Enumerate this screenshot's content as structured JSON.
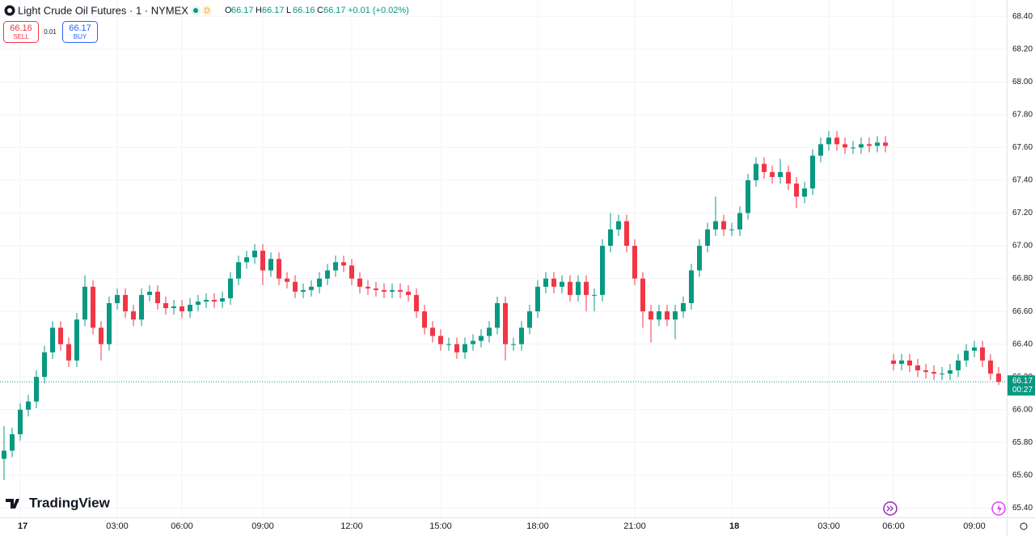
{
  "header": {
    "title": "Light Crude Oil Futures · 1 · NYMEX",
    "badge": "D",
    "ohlc": [
      {
        "key": "O",
        "value": "66.17"
      },
      {
        "key": "H",
        "value": "66.17"
      },
      {
        "key": "L",
        "value": "66.16"
      },
      {
        "key": "C",
        "value": "66.17"
      }
    ],
    "change": "+0.01 (+0.02%)",
    "sell": {
      "price": "66.16",
      "label": "SELL"
    },
    "spread": "0.01",
    "buy": {
      "price": "66.17",
      "label": "BUY"
    },
    "logo": "TradingView"
  },
  "chart_data": {
    "type": "candlestick",
    "up_color": "#089981",
    "down_color": "#f23645",
    "grid": true,
    "ylim": [
      65.35,
      68.5
    ],
    "yticks": [
      {
        "value": 65.4,
        "label": "65.40"
      },
      {
        "value": 65.6,
        "label": "65.60"
      },
      {
        "value": 65.8,
        "label": "65.80"
      },
      {
        "value": 66,
        "label": "66.00"
      },
      {
        "value": 66.2,
        "label": "66.20"
      },
      {
        "value": 66.4,
        "label": "66.40"
      },
      {
        "value": 66.6,
        "label": "66.60"
      },
      {
        "value": 66.8,
        "label": "66.80"
      },
      {
        "value": 67,
        "label": "67.00"
      },
      {
        "value": 67.2,
        "label": "67.20"
      },
      {
        "value": 67.4,
        "label": "67.40"
      },
      {
        "value": 67.6,
        "label": "67.60"
      },
      {
        "value": 67.8,
        "label": "67.80"
      },
      {
        "value": 68,
        "label": "68.00"
      },
      {
        "value": 68.2,
        "label": "68.20"
      },
      {
        "value": 68.4,
        "label": "68.40"
      }
    ],
    "last_price": 66.17,
    "countdown": "00:27",
    "categories": [
      null,
      null,
      "17",
      null,
      null,
      null,
      null,
      null,
      null,
      null,
      null,
      null,
      null,
      null,
      "03:00",
      null,
      null,
      null,
      null,
      null,
      null,
      null,
      "06:00",
      null,
      null,
      null,
      null,
      null,
      null,
      null,
      null,
      null,
      "09:00",
      null,
      null,
      null,
      null,
      null,
      null,
      null,
      null,
      null,
      null,
      "12:00",
      null,
      null,
      null,
      null,
      null,
      null,
      null,
      null,
      null,
      null,
      "15:00",
      null,
      null,
      null,
      null,
      null,
      null,
      null,
      null,
      null,
      null,
      null,
      "18:00",
      null,
      null,
      null,
      null,
      null,
      null,
      null,
      null,
      null,
      null,
      null,
      "21:00",
      null,
      null,
      null,
      null,
      null,
      null,
      null,
      null,
      null,
      null,
      null,
      "18",
      null,
      null,
      null,
      null,
      null,
      null,
      null,
      null,
      null,
      null,
      null,
      "03:00",
      null,
      null,
      null,
      null,
      null,
      null,
      null,
      "06:00",
      null,
      null,
      null,
      null,
      null,
      null,
      null,
      null,
      null,
      "09:00",
      null,
      null,
      null
    ],
    "open": [
      65.7,
      65.75,
      65.85,
      66.0,
      66.05,
      66.2,
      66.35,
      66.5,
      66.4,
      66.3,
      66.55,
      66.75,
      66.5,
      66.4,
      66.65,
      66.7,
      66.6,
      66.55,
      66.7,
      66.72,
      66.65,
      66.62,
      66.63,
      66.6,
      66.64,
      66.66,
      66.67,
      66.66,
      66.68,
      66.8,
      66.9,
      66.93,
      66.97,
      66.85,
      66.92,
      66.8,
      66.78,
      66.72,
      66.73,
      66.75,
      66.8,
      66.85,
      66.9,
      66.88,
      66.8,
      66.75,
      66.74,
      66.73,
      66.72,
      66.73,
      66.72,
      66.7,
      66.6,
      66.5,
      66.45,
      66.4,
      66.4,
      66.35,
      66.4,
      66.42,
      66.45,
      66.5,
      66.65,
      66.4,
      66.4,
      66.5,
      66.6,
      66.75,
      66.8,
      66.75,
      66.78,
      66.7,
      66.78,
      66.7,
      66.7,
      67.0,
      67.1,
      67.15,
      67.0,
      66.8,
      66.6,
      66.55,
      66.6,
      66.55,
      66.6,
      66.65,
      66.85,
      67.0,
      67.1,
      67.15,
      67.1,
      67.1,
      67.2,
      67.4,
      67.5,
      67.45,
      67.42,
      67.45,
      67.38,
      67.3,
      67.35,
      67.55,
      67.62,
      67.66,
      67.62,
      67.6,
      67.6,
      67.62,
      67.61,
      67.63,
      66.3,
      66.28,
      66.3,
      66.27,
      66.24,
      66.23,
      66.22,
      66.22,
      66.24,
      66.3,
      66.36,
      66.38,
      66.3,
      66.22
    ],
    "high": [
      65.9,
      65.89,
      66.04,
      66.09,
      66.24,
      66.39,
      66.54,
      66.54,
      66.44,
      66.59,
      66.82,
      66.79,
      66.54,
      66.69,
      66.74,
      66.74,
      66.64,
      66.74,
      66.76,
      66.76,
      66.69,
      66.67,
      66.67,
      66.68,
      66.7,
      66.71,
      66.71,
      66.72,
      66.84,
      66.94,
      66.97,
      67.01,
      67.01,
      66.96,
      66.96,
      66.84,
      66.82,
      66.77,
      66.79,
      66.84,
      66.89,
      66.94,
      66.94,
      66.92,
      66.84,
      66.79,
      66.78,
      66.77,
      66.77,
      66.77,
      66.76,
      66.74,
      66.64,
      66.54,
      66.49,
      66.44,
      66.44,
      66.44,
      66.46,
      66.49,
      66.54,
      66.69,
      66.69,
      66.44,
      66.54,
      66.64,
      66.79,
      66.84,
      66.84,
      66.82,
      66.82,
      66.82,
      66.82,
      66.74,
      67.04,
      67.2,
      67.19,
      67.19,
      67.04,
      66.84,
      66.64,
      66.64,
      66.64,
      66.64,
      66.69,
      66.89,
      67.04,
      67.14,
      67.3,
      67.19,
      67.14,
      67.24,
      67.44,
      67.54,
      67.54,
      67.49,
      67.53,
      67.49,
      67.42,
      67.39,
      67.59,
      67.66,
      67.7,
      67.7,
      67.66,
      67.64,
      67.66,
      67.66,
      67.67,
      67.67,
      66.34,
      66.34,
      66.34,
      66.31,
      66.28,
      66.27,
      66.26,
      66.28,
      66.34,
      66.4,
      66.42,
      66.42,
      66.34,
      66.26
    ],
    "low": [
      65.57,
      65.71,
      65.81,
      65.96,
      66.01,
      66.16,
      66.31,
      66.36,
      66.26,
      66.26,
      66.51,
      66.46,
      66.3,
      66.36,
      66.61,
      66.56,
      66.51,
      66.51,
      66.66,
      66.61,
      66.58,
      66.58,
      66.56,
      66.56,
      66.6,
      66.62,
      66.62,
      66.62,
      66.64,
      66.76,
      66.86,
      66.89,
      66.76,
      66.81,
      66.76,
      66.74,
      66.68,
      66.68,
      66.69,
      66.71,
      66.76,
      66.81,
      66.84,
      66.76,
      66.71,
      66.7,
      66.69,
      66.68,
      66.68,
      66.68,
      66.66,
      66.56,
      66.46,
      66.41,
      66.36,
      66.36,
      66.31,
      66.31,
      66.36,
      66.38,
      66.41,
      66.46,
      66.3,
      66.36,
      66.36,
      66.46,
      66.56,
      66.71,
      66.71,
      66.71,
      66.66,
      66.66,
      66.6,
      66.6,
      66.66,
      66.96,
      67.06,
      66.96,
      66.76,
      66.5,
      66.41,
      66.51,
      66.51,
      66.43,
      66.56,
      66.61,
      66.81,
      66.96,
      67.06,
      67.06,
      67.06,
      67.06,
      67.16,
      67.36,
      67.41,
      67.38,
      67.38,
      67.34,
      67.23,
      67.26,
      67.31,
      67.51,
      67.58,
      67.58,
      67.56,
      67.56,
      67.56,
      67.57,
      67.57,
      67.57,
      66.24,
      66.24,
      66.23,
      66.2,
      66.19,
      66.18,
      66.18,
      66.18,
      66.2,
      66.26,
      66.32,
      66.26,
      66.18,
      66.15
    ],
    "close": [
      65.75,
      65.85,
      66.0,
      66.05,
      66.2,
      66.35,
      66.5,
      66.4,
      66.3,
      66.55,
      66.75,
      66.5,
      66.4,
      66.65,
      66.7,
      66.6,
      66.55,
      66.7,
      66.72,
      66.65,
      66.62,
      66.63,
      66.6,
      66.64,
      66.66,
      66.67,
      66.66,
      66.68,
      66.8,
      66.9,
      66.93,
      66.97,
      66.85,
      66.92,
      66.8,
      66.78,
      66.72,
      66.73,
      66.75,
      66.8,
      66.85,
      66.9,
      66.88,
      66.8,
      66.75,
      66.74,
      66.73,
      66.72,
      66.73,
      66.72,
      66.7,
      66.6,
      66.5,
      66.45,
      66.4,
      66.4,
      66.35,
      66.4,
      66.42,
      66.45,
      66.5,
      66.65,
      66.4,
      66.4,
      66.5,
      66.6,
      66.75,
      66.8,
      66.75,
      66.78,
      66.7,
      66.78,
      66.7,
      66.7,
      67.0,
      67.1,
      67.15,
      67.0,
      66.8,
      66.6,
      66.55,
      66.6,
      66.55,
      66.6,
      66.65,
      66.85,
      67.0,
      67.1,
      67.15,
      67.1,
      67.1,
      67.2,
      67.4,
      67.5,
      67.45,
      67.42,
      67.45,
      67.38,
      67.3,
      67.35,
      67.55,
      67.62,
      67.66,
      67.62,
      67.6,
      67.6,
      67.62,
      67.61,
      67.63,
      67.61,
      66.28,
      66.3,
      66.27,
      66.24,
      66.23,
      66.22,
      66.22,
      66.24,
      66.3,
      66.36,
      66.38,
      66.3,
      66.22,
      66.17
    ]
  }
}
